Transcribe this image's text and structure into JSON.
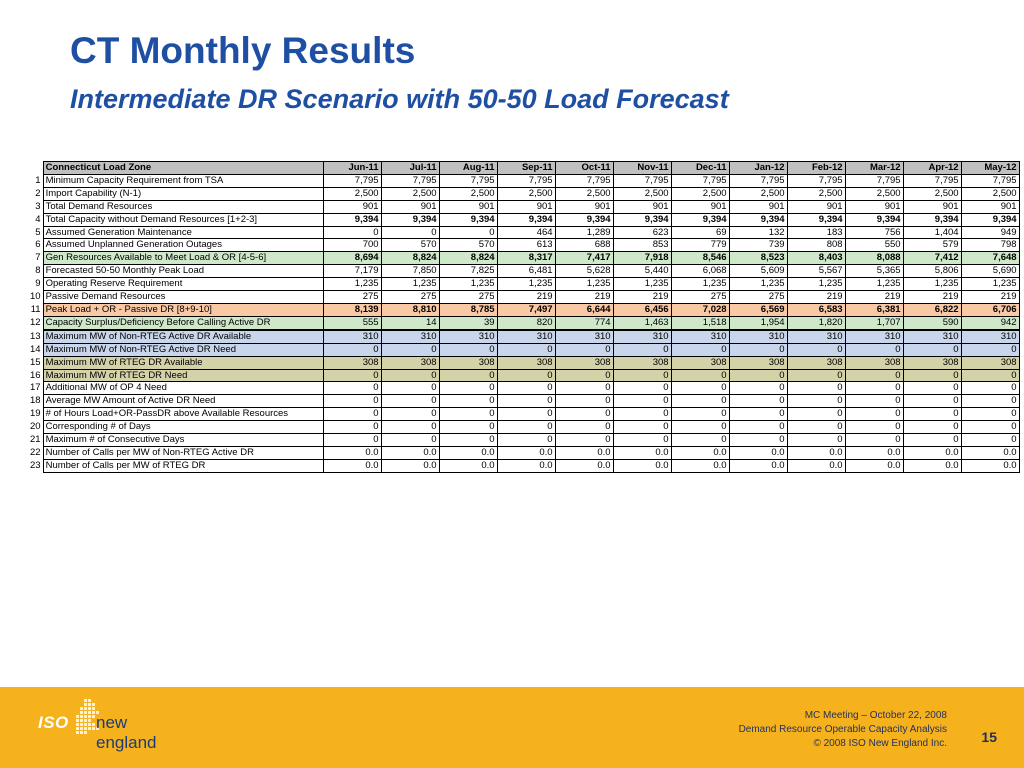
{
  "header": {
    "title": "CT Monthly Results",
    "subtitle": "Intermediate DR Scenario with 50-50 Load Forecast"
  },
  "table": {
    "label_header": "Connecticut Load Zone",
    "columns": [
      "Jun-11",
      "Jul-11",
      "Aug-11",
      "Sep-11",
      "Oct-11",
      "Nov-11",
      "Dec-11",
      "Jan-12",
      "Feb-12",
      "Mar-12",
      "Apr-12",
      "May-12"
    ],
    "rows": [
      {
        "n": "1",
        "label": "Minimum Capacity Requirement from TSA",
        "style": "",
        "values": [
          "7,795",
          "7,795",
          "7,795",
          "7,795",
          "7,795",
          "7,795",
          "7,795",
          "7,795",
          "7,795",
          "7,795",
          "7,795",
          "7,795"
        ]
      },
      {
        "n": "2",
        "label": "Import Capability (N-1)",
        "style": "",
        "values": [
          "2,500",
          "2,500",
          "2,500",
          "2,500",
          "2,500",
          "2,500",
          "2,500",
          "2,500",
          "2,500",
          "2,500",
          "2,500",
          "2,500"
        ]
      },
      {
        "n": "3",
        "label": "Total Demand Resources",
        "style": "",
        "values": [
          "901",
          "901",
          "901",
          "901",
          "901",
          "901",
          "901",
          "901",
          "901",
          "901",
          "901",
          "901"
        ]
      },
      {
        "n": "4",
        "label": "Total Capacity without Demand Resources [1+2-3]",
        "style": "bold",
        "values": [
          "9,394",
          "9,394",
          "9,394",
          "9,394",
          "9,394",
          "9,394",
          "9,394",
          "9,394",
          "9,394",
          "9,394",
          "9,394",
          "9,394"
        ]
      },
      {
        "n": "5",
        "label": "Assumed Generation Maintenance",
        "style": "",
        "values": [
          "0",
          "0",
          "0",
          "464",
          "1,289",
          "623",
          "69",
          "132",
          "183",
          "756",
          "1,404",
          "949"
        ]
      },
      {
        "n": "6",
        "label": "Assumed Unplanned Generation Outages",
        "style": "",
        "values": [
          "700",
          "570",
          "570",
          "613",
          "688",
          "853",
          "779",
          "739",
          "808",
          "550",
          "579",
          "798"
        ]
      },
      {
        "n": "7",
        "label": "Gen Resources Available to Meet Load & OR [4-5-6]",
        "style": "green bold",
        "values": [
          "8,694",
          "8,824",
          "8,824",
          "8,317",
          "7,417",
          "7,918",
          "8,546",
          "8,523",
          "8,403",
          "8,088",
          "7,412",
          "7,648"
        ]
      },
      {
        "n": "8",
        "label": "Forecasted 50-50 Monthly Peak Load",
        "style": "",
        "values": [
          "7,179",
          "7,850",
          "7,825",
          "6,481",
          "5,628",
          "5,440",
          "6,068",
          "5,609",
          "5,567",
          "5,365",
          "5,806",
          "5,690"
        ]
      },
      {
        "n": "9",
        "label": "Operating Reserve Requirement",
        "style": "",
        "values": [
          "1,235",
          "1,235",
          "1,235",
          "1,235",
          "1,235",
          "1,235",
          "1,235",
          "1,235",
          "1,235",
          "1,235",
          "1,235",
          "1,235"
        ]
      },
      {
        "n": "10",
        "label": "Passive Demand Resources",
        "style": "",
        "values": [
          "275",
          "275",
          "275",
          "219",
          "219",
          "219",
          "275",
          "275",
          "219",
          "219",
          "219",
          "219"
        ]
      },
      {
        "n": "11",
        "label": "Peak Load + OR - Passive DR [8+9-10]",
        "style": "orange bold",
        "values": [
          "8,139",
          "8,810",
          "8,785",
          "7,497",
          "6,644",
          "6,456",
          "7,028",
          "6,569",
          "6,583",
          "6,381",
          "6,822",
          "6,706"
        ]
      },
      {
        "n": "12",
        "label": "Capacity Surplus/Deficiency Before Calling Active DR",
        "style": "green",
        "values": [
          "555",
          "14",
          "39",
          "820",
          "774",
          "1,463",
          "1,518",
          "1,954",
          "1,820",
          "1,707",
          "590",
          "942"
        ]
      },
      {
        "n": "13",
        "label": "Maximum MW of Non-RTEG Active DR Available",
        "style": "blue thick",
        "values": [
          "310",
          "310",
          "310",
          "310",
          "310",
          "310",
          "310",
          "310",
          "310",
          "310",
          "310",
          "310"
        ]
      },
      {
        "n": "14",
        "label": "Maximum MW of Non-RTEG Active DR Need",
        "style": "blue",
        "values": [
          "0",
          "0",
          "0",
          "0",
          "0",
          "0",
          "0",
          "0",
          "0",
          "0",
          "0",
          "0"
        ]
      },
      {
        "n": "15",
        "label": "Maximum MW of RTEG DR Available",
        "style": "olive",
        "values": [
          "308",
          "308",
          "308",
          "308",
          "308",
          "308",
          "308",
          "308",
          "308",
          "308",
          "308",
          "308"
        ]
      },
      {
        "n": "16",
        "label": "Maximum MW of RTEG DR Need",
        "style": "olive",
        "values": [
          "0",
          "0",
          "0",
          "0",
          "0",
          "0",
          "0",
          "0",
          "0",
          "0",
          "0",
          "0"
        ]
      },
      {
        "n": "17",
        "label": "Additional MW of OP 4 Need",
        "style": "",
        "values": [
          "0",
          "0",
          "0",
          "0",
          "0",
          "0",
          "0",
          "0",
          "0",
          "0",
          "0",
          "0"
        ]
      },
      {
        "n": "18",
        "label": "Average MW Amount of Active DR Need",
        "style": "",
        "values": [
          "0",
          "0",
          "0",
          "0",
          "0",
          "0",
          "0",
          "0",
          "0",
          "0",
          "0",
          "0"
        ]
      },
      {
        "n": "19",
        "label": "# of Hours Load+OR-PassDR above Available Resources",
        "style": "",
        "values": [
          "0",
          "0",
          "0",
          "0",
          "0",
          "0",
          "0",
          "0",
          "0",
          "0",
          "0",
          "0"
        ]
      },
      {
        "n": "20",
        "label": "Corresponding # of Days",
        "style": "",
        "values": [
          "0",
          "0",
          "0",
          "0",
          "0",
          "0",
          "0",
          "0",
          "0",
          "0",
          "0",
          "0"
        ]
      },
      {
        "n": "21",
        "label": "Maximum # of Consecutive Days",
        "style": "",
        "values": [
          "0",
          "0",
          "0",
          "0",
          "0",
          "0",
          "0",
          "0",
          "0",
          "0",
          "0",
          "0"
        ]
      },
      {
        "n": "22",
        "label": "Number of Calls per MW of Non-RTEG Active DR",
        "style": "",
        "values": [
          "0.0",
          "0.0",
          "0.0",
          "0.0",
          "0.0",
          "0.0",
          "0.0",
          "0.0",
          "0.0",
          "0.0",
          "0.0",
          "0.0"
        ]
      },
      {
        "n": "23",
        "label": "Number of Calls per MW of RTEG DR",
        "style": "",
        "values": [
          "0.0",
          "0.0",
          "0.0",
          "0.0",
          "0.0",
          "0.0",
          "0.0",
          "0.0",
          "0.0",
          "0.0",
          "0.0",
          "0.0"
        ]
      }
    ]
  },
  "footer": {
    "logo_iso": "ISO",
    "logo_name": "new england",
    "meeting_line1": "MC Meeting – October 22, 2008",
    "meeting_line2": "Demand Resource Operable Capacity Analysis",
    "meeting_line3": "© 2008 ISO New England Inc.",
    "page_number": "15",
    "bar_color": "#f6b21c",
    "title_color": "#1f4fa3"
  }
}
